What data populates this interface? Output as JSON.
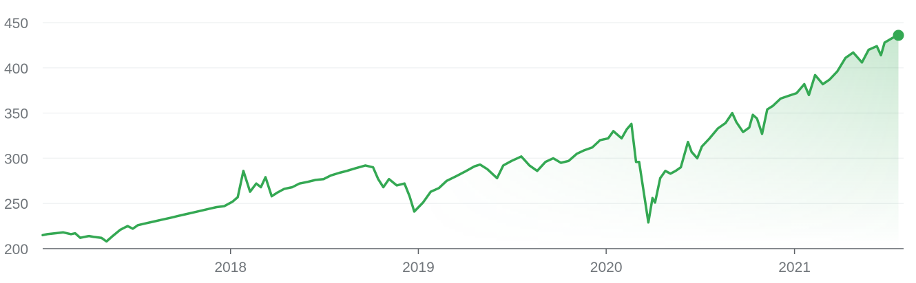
{
  "colors": {
    "line": "#34a853",
    "grid": "#f1f3f4",
    "axis": "#5f6368",
    "tick_text": "#70757a"
  },
  "chart_data": {
    "type": "area",
    "title": "",
    "xlabel": "",
    "ylabel": "",
    "ylim": [
      200,
      450
    ],
    "y_ticks": [
      "450",
      "400",
      "350",
      "300",
      "250",
      "200"
    ],
    "x_ticks": [
      "2018",
      "2019",
      "2020",
      "2021"
    ],
    "x_range": [
      "2017-01-01",
      "2021-08-01"
    ],
    "grid": "horizontal",
    "legend": "none",
    "end_marker": true,
    "series": [
      {
        "points": [
          [
            "2017-01-01",
            215
          ],
          [
            "2017-01-10",
            216
          ],
          [
            "2017-01-25",
            217
          ],
          [
            "2017-02-10",
            218
          ],
          [
            "2017-02-25",
            216
          ],
          [
            "2017-03-05",
            217
          ],
          [
            "2017-03-15",
            212
          ],
          [
            "2017-04-01",
            214
          ],
          [
            "2017-04-10",
            213
          ],
          [
            "2017-04-25",
            212
          ],
          [
            "2017-05-05",
            208
          ],
          [
            "2017-05-15",
            213
          ],
          [
            "2017-06-01",
            221
          ],
          [
            "2017-06-15",
            225
          ],
          [
            "2017-06-25",
            222
          ],
          [
            "2017-07-05",
            226
          ],
          [
            "2017-07-20",
            228
          ],
          [
            "2017-08-05",
            230
          ],
          [
            "2017-08-20",
            232
          ],
          [
            "2017-09-05",
            234
          ],
          [
            "2017-09-20",
            236
          ],
          [
            "2017-10-05",
            238
          ],
          [
            "2017-10-20",
            240
          ],
          [
            "2017-11-05",
            242
          ],
          [
            "2017-11-20",
            244
          ],
          [
            "2017-12-05",
            246
          ],
          [
            "2017-12-20",
            247
          ],
          [
            "2018-01-05",
            252
          ],
          [
            "2018-01-15",
            257
          ],
          [
            "2018-01-26",
            286
          ],
          [
            "2018-02-08",
            263
          ],
          [
            "2018-02-20",
            272
          ],
          [
            "2018-03-01",
            268
          ],
          [
            "2018-03-10",
            279
          ],
          [
            "2018-03-22",
            258
          ],
          [
            "2018-04-02",
            262
          ],
          [
            "2018-04-15",
            266
          ],
          [
            "2018-05-01",
            268
          ],
          [
            "2018-05-15",
            272
          ],
          [
            "2018-06-01",
            274
          ],
          [
            "2018-06-15",
            276
          ],
          [
            "2018-07-01",
            277
          ],
          [
            "2018-07-15",
            281
          ],
          [
            "2018-08-01",
            284
          ],
          [
            "2018-08-15",
            286
          ],
          [
            "2018-09-01",
            289
          ],
          [
            "2018-09-20",
            292
          ],
          [
            "2018-10-05",
            290
          ],
          [
            "2018-10-15",
            277
          ],
          [
            "2018-10-25",
            268
          ],
          [
            "2018-11-05",
            277
          ],
          [
            "2018-11-20",
            270
          ],
          [
            "2018-12-05",
            272
          ],
          [
            "2018-12-15",
            258
          ],
          [
            "2018-12-24",
            241
          ],
          [
            "2019-01-10",
            251
          ],
          [
            "2019-01-25",
            263
          ],
          [
            "2019-02-10",
            267
          ],
          [
            "2019-02-25",
            275
          ],
          [
            "2019-03-15",
            280
          ],
          [
            "2019-04-01",
            285
          ],
          [
            "2019-04-20",
            291
          ],
          [
            "2019-05-01",
            293
          ],
          [
            "2019-05-15",
            288
          ],
          [
            "2019-06-03",
            278
          ],
          [
            "2019-06-15",
            292
          ],
          [
            "2019-07-01",
            297
          ],
          [
            "2019-07-20",
            302
          ],
          [
            "2019-08-05",
            292
          ],
          [
            "2019-08-20",
            286
          ],
          [
            "2019-09-05",
            296
          ],
          [
            "2019-09-20",
            300
          ],
          [
            "2019-10-05",
            295
          ],
          [
            "2019-10-20",
            297
          ],
          [
            "2019-11-05",
            305
          ],
          [
            "2019-11-20",
            309
          ],
          [
            "2019-12-05",
            312
          ],
          [
            "2019-12-20",
            320
          ],
          [
            "2020-01-05",
            322
          ],
          [
            "2020-01-15",
            330
          ],
          [
            "2020-01-31",
            322
          ],
          [
            "2020-02-10",
            332
          ],
          [
            "2020-02-19",
            338
          ],
          [
            "2020-02-28",
            296
          ],
          [
            "2020-03-05",
            296
          ],
          [
            "2020-03-12",
            270
          ],
          [
            "2020-03-23",
            229
          ],
          [
            "2020-03-31",
            256
          ],
          [
            "2020-04-05",
            251
          ],
          [
            "2020-04-15",
            278
          ],
          [
            "2020-04-25",
            286
          ],
          [
            "2020-05-05",
            283
          ],
          [
            "2020-05-15",
            286
          ],
          [
            "2020-05-25",
            290
          ],
          [
            "2020-06-08",
            318
          ],
          [
            "2020-06-15",
            307
          ],
          [
            "2020-06-26",
            300
          ],
          [
            "2020-07-05",
            313
          ],
          [
            "2020-07-20",
            322
          ],
          [
            "2020-08-05",
            333
          ],
          [
            "2020-08-20",
            339
          ],
          [
            "2020-09-02",
            350
          ],
          [
            "2020-09-10",
            340
          ],
          [
            "2020-09-23",
            329
          ],
          [
            "2020-10-05",
            334
          ],
          [
            "2020-10-12",
            348
          ],
          [
            "2020-10-20",
            344
          ],
          [
            "2020-10-30",
            327
          ],
          [
            "2020-11-09",
            354
          ],
          [
            "2020-11-20",
            358
          ],
          [
            "2020-12-05",
            366
          ],
          [
            "2020-12-20",
            369
          ],
          [
            "2021-01-05",
            372
          ],
          [
            "2021-01-20",
            382
          ],
          [
            "2021-01-29",
            370
          ],
          [
            "2021-02-10",
            392
          ],
          [
            "2021-02-25",
            382
          ],
          [
            "2021-03-10",
            387
          ],
          [
            "2021-03-25",
            396
          ],
          [
            "2021-04-10",
            411
          ],
          [
            "2021-04-25",
            417
          ],
          [
            "2021-05-12",
            406
          ],
          [
            "2021-05-25",
            420
          ],
          [
            "2021-06-10",
            424
          ],
          [
            "2021-06-18",
            414
          ],
          [
            "2021-06-25",
            428
          ],
          [
            "2021-07-10",
            433
          ],
          [
            "2021-07-22",
            436
          ]
        ]
      }
    ]
  }
}
